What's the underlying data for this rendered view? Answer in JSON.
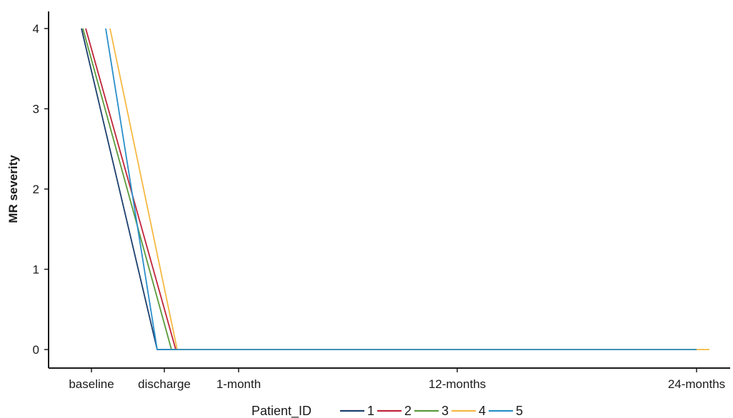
{
  "chart_data": {
    "type": "line",
    "ylabel": "MR severity",
    "xlabel": "",
    "x_ticks": [
      "baseline",
      "discharge",
      "1-month",
      "12-months",
      "24-months"
    ],
    "y_ticks": [
      "0",
      "1",
      "2",
      "3",
      "4"
    ],
    "ylim": [
      0,
      4
    ],
    "legend": {
      "title": "Patient_ID",
      "position": "bottom"
    },
    "series": [
      {
        "name": "1",
        "color": "#1b3f6e",
        "points": [
          {
            "x": "baseline",
            "y": 4
          },
          {
            "x": "discharge",
            "y": 0
          },
          {
            "x": "1-month",
            "y": 0
          },
          {
            "x": "12-months",
            "y": 0
          },
          {
            "x": "24-months",
            "y": 0
          }
        ]
      },
      {
        "name": "2",
        "color": "#c0243a",
        "points": [
          {
            "x": "baseline",
            "y": 4
          },
          {
            "x": "discharge",
            "y": 0
          },
          {
            "x": "1-month",
            "y": 0
          },
          {
            "x": "12-months",
            "y": 0
          },
          {
            "x": "24-months",
            "y": 0
          }
        ]
      },
      {
        "name": "3",
        "color": "#5a9a3a",
        "points": [
          {
            "x": "baseline",
            "y": 4
          },
          {
            "x": "discharge",
            "y": 0
          },
          {
            "x": "1-month",
            "y": 0
          },
          {
            "x": "12-months",
            "y": 0
          },
          {
            "x": "24-months",
            "y": 0
          }
        ]
      },
      {
        "name": "4",
        "color": "#f5b942",
        "points": [
          {
            "x": "baseline",
            "y": 4
          },
          {
            "x": "discharge",
            "y": 0
          },
          {
            "x": "1-month",
            "y": 0
          },
          {
            "x": "12-months",
            "y": 0
          },
          {
            "x": "24-months",
            "y": 0
          }
        ]
      },
      {
        "name": "5",
        "color": "#2a8fc9",
        "points": [
          {
            "x": "baseline",
            "y": 4
          },
          {
            "x": "discharge",
            "y": 0
          },
          {
            "x": "1-month",
            "y": 0
          },
          {
            "x": "12-months",
            "y": 0
          },
          {
            "x": "24-months",
            "y": 0
          }
        ]
      }
    ]
  }
}
